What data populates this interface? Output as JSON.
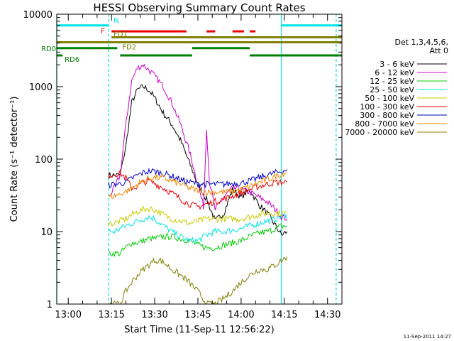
{
  "chart_data": {
    "type": "line",
    "title": "HESSI Observing Summary Count Rates",
    "xlabel": "Start Time (11-Sep-11 12:56:22)",
    "ylabel": "Count Rate (s⁻¹ detector⁻¹)",
    "y_scale": "log",
    "ylim": [
      1,
      10000
    ],
    "xlim": [
      "12:56",
      "14:35"
    ],
    "grid": false,
    "x_ticks": [
      "13:00",
      "13:15",
      "13:30",
      "13:45",
      "14:00",
      "14:15",
      "14:30"
    ],
    "y_ticks": [
      "1",
      "10",
      "100",
      "1000",
      "10000"
    ],
    "timestamp": "11-Sep-2011 14:27",
    "legend_position": "right",
    "legend_header": [
      "Det 1,3,4,5,6,",
      "Att 0"
    ],
    "series": [
      {
        "name": "3 - 6 keV",
        "color": "#000000",
        "x": [
          "13:14",
          "13:16",
          "13:18",
          "13:20",
          "13:22",
          "13:24",
          "13:26",
          "13:28",
          "13:30",
          "13:33",
          "13:36",
          "13:39",
          "13:42",
          "13:45",
          "13:48",
          "13:51",
          "13:54",
          "13:57",
          "14:00",
          "14:03",
          "14:06",
          "14:09",
          "14:12",
          "14:14",
          "14:16"
        ],
        "y": [
          60,
          60,
          60,
          150,
          600,
          900,
          1000,
          900,
          700,
          430,
          300,
          180,
          90,
          45,
          28,
          14,
          18,
          38,
          30,
          38,
          24,
          18,
          12,
          9,
          10
        ]
      },
      {
        "name": "6 - 12 keV",
        "color": "#cc00cc",
        "x": [
          "13:14",
          "13:16",
          "13:18",
          "13:20",
          "13:22",
          "13:24",
          "13:26",
          "13:28",
          "13:30",
          "13:33",
          "13:36",
          "13:39",
          "13:42",
          "13:45",
          "13:47",
          "13:48",
          "13:49",
          "13:51",
          "13:54",
          "13:57",
          "14:00",
          "14:03",
          "14:06",
          "14:09",
          "14:12",
          "14:14",
          "14:16"
        ],
        "y": [
          30,
          40,
          60,
          300,
          1200,
          1800,
          2000,
          1700,
          1400,
          1000,
          600,
          300,
          130,
          45,
          22,
          280,
          50,
          20,
          30,
          40,
          38,
          35,
          30,
          26,
          20,
          16,
          15
        ]
      },
      {
        "name": "12 - 25 keV",
        "color": "#00cc00",
        "x": [
          "13:14",
          "13:16",
          "13:18",
          "13:20",
          "13:22",
          "13:24",
          "13:26",
          "13:28",
          "13:30",
          "13:33",
          "13:36",
          "13:39",
          "13:42",
          "13:45",
          "13:48",
          "13:51",
          "13:54",
          "13:57",
          "14:00",
          "14:03",
          "14:06",
          "14:09",
          "14:12",
          "14:14",
          "14:16"
        ],
        "y": [
          5,
          5,
          5,
          6,
          7,
          7,
          7.5,
          8,
          8,
          8.5,
          8.5,
          8,
          7.5,
          6.5,
          6,
          6,
          6.5,
          7,
          7.5,
          8.5,
          9.5,
          10,
          11,
          12,
          12
        ]
      },
      {
        "name": "25 - 50 keV",
        "color": "#00e5e5",
        "x": [
          "13:14",
          "13:16",
          "13:18",
          "13:20",
          "13:22",
          "13:24",
          "13:26",
          "13:28",
          "13:30",
          "13:33",
          "13:36",
          "13:39",
          "13:42",
          "13:45",
          "13:48",
          "13:51",
          "13:54",
          "13:57",
          "14:00",
          "14:03",
          "14:06",
          "14:09",
          "14:12",
          "14:14",
          "14:16"
        ],
        "y": [
          10,
          10,
          11,
          12,
          13,
          14,
          15,
          16,
          15,
          12,
          10,
          8.5,
          7.5,
          7.5,
          9,
          10,
          10,
          10.5,
          11,
          12,
          13,
          14,
          15,
          16,
          17
        ]
      },
      {
        "name": "50 - 100 keV",
        "color": "#cccc00",
        "x": [
          "13:14",
          "13:16",
          "13:18",
          "13:20",
          "13:22",
          "13:24",
          "13:26",
          "13:28",
          "13:30",
          "13:33",
          "13:36",
          "13:39",
          "13:42",
          "13:45",
          "13:48",
          "13:51",
          "13:54",
          "13:57",
          "14:00",
          "14:03",
          "14:06",
          "14:09",
          "14:12",
          "14:14",
          "14:16"
        ],
        "y": [
          13,
          13,
          14,
          15,
          17,
          19,
          20,
          21,
          20,
          17,
          15,
          14,
          13,
          14,
          15,
          15,
          15,
          15,
          15,
          16,
          17,
          18,
          18,
          18,
          18
        ]
      },
      {
        "name": "100 - 300 keV",
        "color": "#ee0000",
        "x": [
          "13:14",
          "13:16",
          "13:18",
          "13:20",
          "13:22",
          "13:24",
          "13:26",
          "13:28",
          "13:30",
          "13:33",
          "13:36",
          "13:39",
          "13:42",
          "13:45",
          "13:48",
          "13:51",
          "13:54",
          "13:57",
          "14:00",
          "14:03",
          "14:06",
          "14:09",
          "14:12",
          "14:14",
          "14:16"
        ],
        "y": [
          60,
          62,
          64,
          55,
          40,
          42,
          48,
          50,
          46,
          40,
          34,
          28,
          24,
          22,
          24,
          26,
          28,
          31,
          34,
          38,
          42,
          45,
          48,
          48,
          48
        ]
      },
      {
        "name": "300 - 800 keV",
        "color": "#0000cc",
        "x": [
          "13:14",
          "13:16",
          "13:18",
          "13:20",
          "13:22",
          "13:24",
          "13:26",
          "13:28",
          "13:30",
          "13:33",
          "13:36",
          "13:39",
          "13:42",
          "13:45",
          "13:48",
          "13:51",
          "13:54",
          "13:57",
          "14:00",
          "14:03",
          "14:06",
          "14:09",
          "14:12",
          "14:14",
          "14:16"
        ],
        "y": [
          44,
          45,
          46,
          48,
          54,
          60,
          65,
          68,
          68,
          64,
          58,
          52,
          48,
          46,
          45,
          45,
          45,
          46,
          47,
          50,
          55,
          60,
          65,
          68,
          72
        ]
      },
      {
        "name": "800 - 7000 keV",
        "color": "#ee8800",
        "x": [
          "13:14",
          "13:16",
          "13:18",
          "13:20",
          "13:22",
          "13:24",
          "13:26",
          "13:28",
          "13:30",
          "13:33",
          "13:36",
          "13:39",
          "13:42",
          "13:45",
          "13:48",
          "13:51",
          "13:54",
          "13:57",
          "14:00",
          "14:03",
          "14:06",
          "14:09",
          "14:12",
          "14:14",
          "14:16"
        ],
        "y": [
          30,
          31,
          33,
          36,
          40,
          45,
          50,
          54,
          56,
          55,
          50,
          45,
          40,
          37,
          35,
          35,
          35,
          36,
          38,
          42,
          47,
          52,
          58,
          62,
          66
        ]
      },
      {
        "name": "7000 - 20000 keV",
        "color": "#808000",
        "x": [
          "13:14",
          "13:16",
          "13:18",
          "13:20",
          "13:22",
          "13:24",
          "13:26",
          "13:28",
          "13:30",
          "13:32",
          "13:34",
          "13:36",
          "13:39",
          "13:42",
          "13:45",
          "13:48",
          "13:51",
          "13:54",
          "13:57",
          "14:00",
          "14:03",
          "14:06",
          "14:09",
          "14:12",
          "14:14",
          "14:16"
        ],
        "y": [
          1,
          1,
          1,
          1.5,
          2,
          2.5,
          3,
          3.5,
          4,
          4,
          3.5,
          3,
          2.5,
          2,
          1.5,
          1,
          1,
          1.2,
          1.5,
          2,
          2.5,
          3,
          3,
          3.5,
          4,
          4.5
        ]
      }
    ],
    "flags": [
      {
        "label": "N",
        "color": "#00e5e5",
        "y": 7000,
        "segments": [
          [
            "12:56",
            "13:14"
          ],
          [
            "14:14",
            "14:35"
          ]
        ]
      },
      {
        "label": "F",
        "color": "#ee0000",
        "y": 5800,
        "segments": [
          [
            "13:15",
            "13:41"
          ],
          [
            "13:48",
            "13:51"
          ],
          [
            "13:57",
            "14:01"
          ],
          [
            "14:03",
            "14:05"
          ]
        ]
      },
      {
        "label": "FD1",
        "color": "#808000",
        "y": 4800,
        "segments": [
          [
            "13:15",
            "14:35"
          ]
        ]
      },
      {
        "label": "FD2",
        "color": "#808000",
        "y": 4100,
        "segments": [
          [
            "12:56",
            "14:35"
          ]
        ]
      },
      {
        "label": "RD0",
        "color": "#008000",
        "y": 3400,
        "segments": [
          [
            "12:56",
            "13:17"
          ],
          [
            "13:43",
            "14:03"
          ]
        ]
      },
      {
        "label": "RD6",
        "color": "#008000",
        "y": 2700,
        "segments": [
          [
            "12:56",
            "12:58"
          ],
          [
            "13:18",
            "13:43"
          ],
          [
            "14:03",
            "14:35"
          ]
        ]
      }
    ],
    "night_markers": {
      "solid": [
        "12:56",
        "14:14"
      ],
      "dashed": [
        "13:14",
        "14:33"
      ],
      "color": "#00e5e5"
    }
  }
}
